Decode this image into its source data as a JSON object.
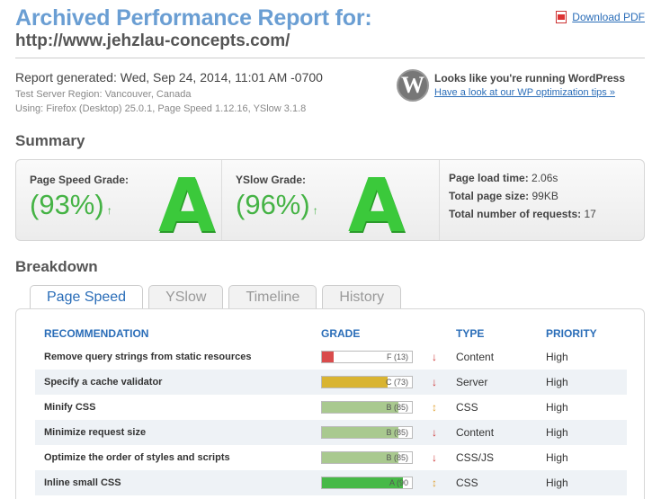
{
  "header": {
    "title": "Archived Performance Report for:",
    "url": "http://www.jehzlau-concepts.com/",
    "download_label": "Download PDF"
  },
  "report": {
    "generated": "Report generated: Wed, Sep 24, 2014, 11:01 AM -0700",
    "region": "Test Server Region: Vancouver, Canada",
    "using": "Using: Firefox (Desktop) 25.0.1, Page Speed 1.12.16, YSlow 3.1.8"
  },
  "wordpress": {
    "logo": "W",
    "headline": "Looks like you're running WordPress",
    "link": "Have a look at our WP optimization tips »"
  },
  "summary": {
    "heading": "Summary",
    "pagespeed_label": "Page Speed Grade:",
    "pagespeed_pct": "(93%)",
    "pagespeed_letter": "A",
    "yslow_label": "YSlow Grade:",
    "yslow_pct": "(96%)",
    "yslow_letter": "A",
    "trend_glyph": "↑",
    "load_label": "Page load time:",
    "load_value": "2.06s",
    "size_label": "Total page size:",
    "size_value": "99KB",
    "requests_label": "Total number of requests:",
    "requests_value": "17"
  },
  "breakdown": {
    "heading": "Breakdown",
    "tabs": [
      "Page Speed",
      "YSlow",
      "Timeline",
      "History"
    ],
    "columns": [
      "RECOMMENDATION",
      "GRADE",
      "TYPE",
      "PRIORITY"
    ],
    "rows": [
      {
        "rec": "Remove query strings from static resources",
        "grade": "F (13)",
        "score": 13,
        "color": "#d94c4c",
        "trend": "↓",
        "trend_color": "#cc3333",
        "type": "Content",
        "priority": "High"
      },
      {
        "rec": "Specify a cache validator",
        "grade": "C (73)",
        "score": 73,
        "color": "#d9b431",
        "trend": "↓",
        "trend_color": "#cc3333",
        "type": "Server",
        "priority": "High"
      },
      {
        "rec": "Minify CSS",
        "grade": "B (85)",
        "score": 85,
        "color": "#a9c98f",
        "trend": "↕",
        "trend_color": "#e0a030",
        "type": "CSS",
        "priority": "High"
      },
      {
        "rec": "Minimize request size",
        "grade": "B (85)",
        "score": 85,
        "color": "#a9c98f",
        "trend": "↓",
        "trend_color": "#cc3333",
        "type": "Content",
        "priority": "High"
      },
      {
        "rec": "Optimize the order of styles and scripts",
        "grade": "B (85)",
        "score": 85,
        "color": "#a9c98f",
        "trend": "↓",
        "trend_color": "#cc3333",
        "type": "CSS/JS",
        "priority": "High"
      },
      {
        "rec": "Inline small CSS",
        "grade": "A (90",
        "score": 90,
        "color": "#47b947",
        "trend": "↕",
        "trend_color": "#e0a030",
        "type": "CSS",
        "priority": "High"
      }
    ]
  }
}
